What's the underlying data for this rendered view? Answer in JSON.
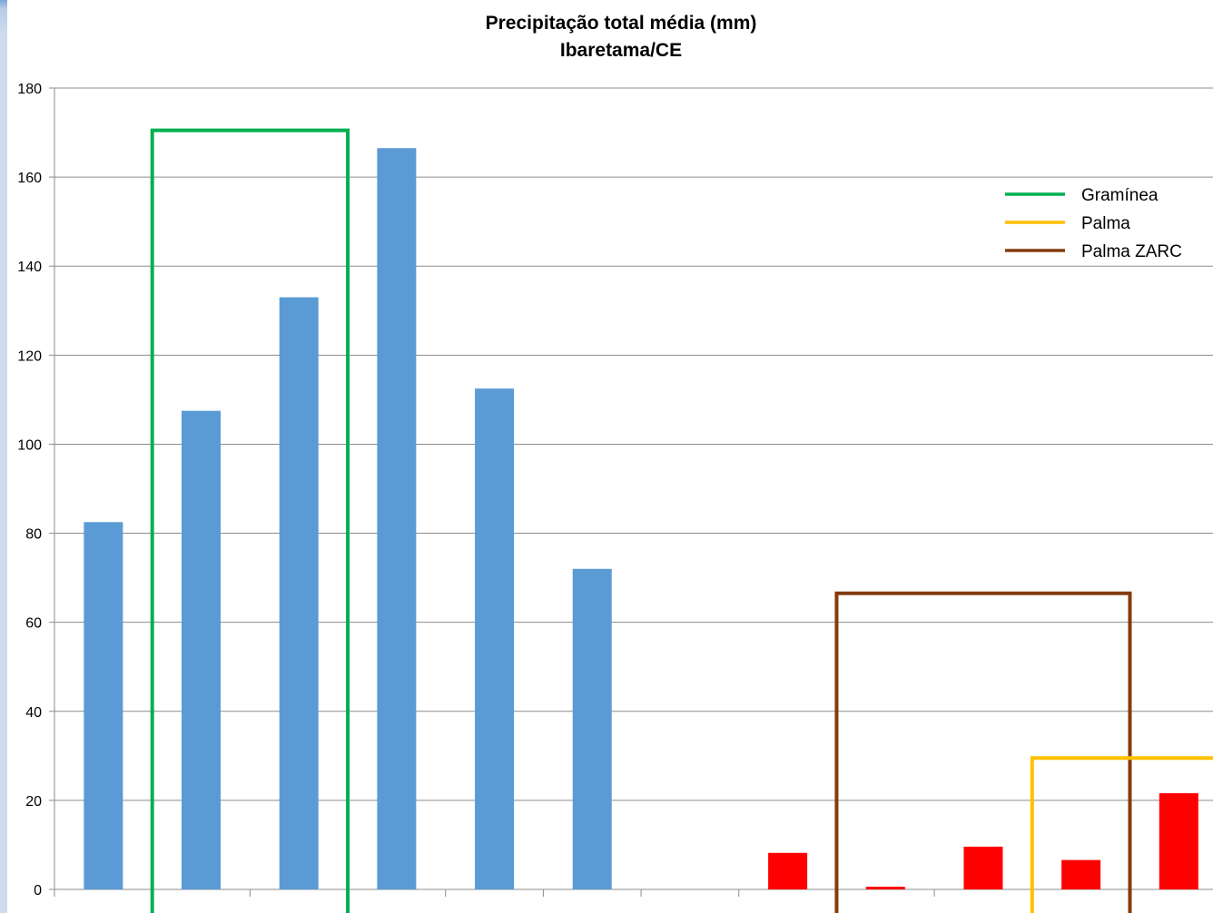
{
  "chart_data": {
    "type": "bar",
    "title": "Precipitação total média (mm)",
    "subtitle": "Ibaretama/CE",
    "xlabel": "",
    "ylabel": "",
    "ylim": [
      0,
      180
    ],
    "yticks": [
      0,
      20,
      40,
      60,
      80,
      100,
      120,
      140,
      160,
      180
    ],
    "grid": true,
    "categories_count": 12,
    "values": [
      82.5,
      107.5,
      133,
      166.5,
      112.5,
      72,
      0,
      8.2,
      0.6,
      9.6,
      6.6,
      21.6
    ],
    "bar_colors": [
      "#5b9bd5",
      "#5b9bd5",
      "#5b9bd5",
      "#5b9bd5",
      "#5b9bd5",
      "#5b9bd5",
      "#5b9bd5",
      "#ff0000",
      "#ff0000",
      "#ff0000",
      "#ff0000",
      "#ff0000"
    ],
    "legend": {
      "placement": "top-right",
      "entries": [
        {
          "name": "Gramínea",
          "color": "#00b050"
        },
        {
          "name": "Palma",
          "color": "#ffc000"
        },
        {
          "name": "Palma ZARC",
          "color": "#843c0c"
        }
      ]
    },
    "annotations": [
      {
        "label": "Gramínea",
        "color": "#00b050",
        "from_index": 1,
        "to_index": 2,
        "top_value": 170.5
      },
      {
        "label": "Palma ZARC",
        "color": "#843c0c",
        "from_index": 8,
        "to_index": 10,
        "top_value": 66.5
      },
      {
        "label": "Palma",
        "color": "#ffc000",
        "from_index": 10,
        "to_index": 11,
        "top_value": 29.5
      }
    ]
  }
}
